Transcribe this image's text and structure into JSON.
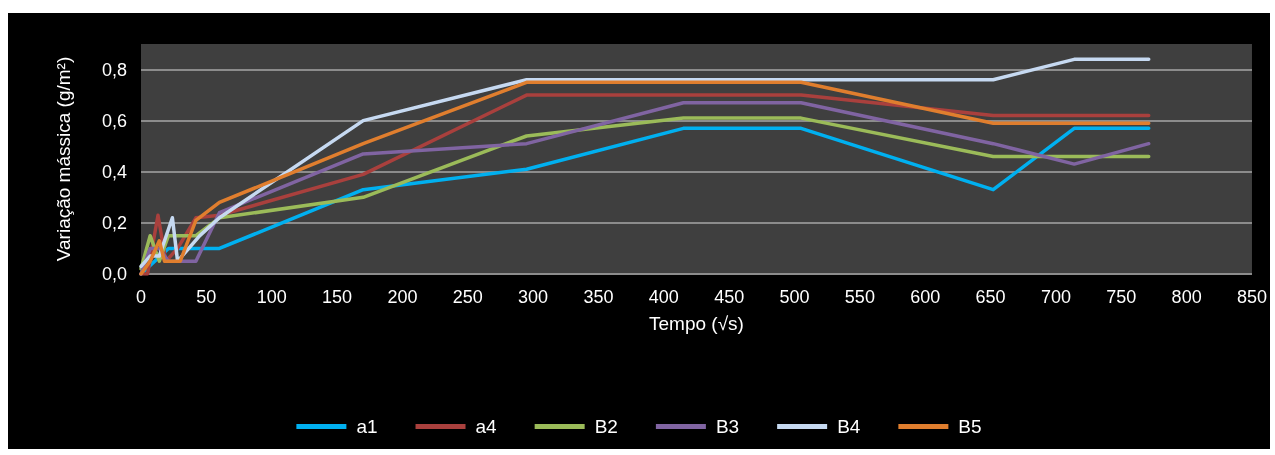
{
  "chart_data": {
    "type": "line",
    "xlabel": "Tempo (√s)",
    "ylabel": "Variação mássica (g/m²)",
    "xlim": [
      0,
      850
    ],
    "xticks": [
      0,
      50,
      100,
      150,
      200,
      250,
      300,
      350,
      400,
      450,
      500,
      550,
      600,
      650,
      700,
      750,
      800,
      850
    ],
    "ylim": [
      0,
      0.9
    ],
    "yticks": [
      {
        "value": 0,
        "label": "0,0"
      },
      {
        "value": 0.2,
        "label": "0,2"
      },
      {
        "value": 0.4,
        "label": "0,4"
      },
      {
        "value": 0.6,
        "label": "0,6"
      },
      {
        "value": 0.8,
        "label": "0,8"
      }
    ],
    "grid": "y",
    "legend": "bottom",
    "marker": "none",
    "line_style": "solid",
    "series": [
      {
        "name": "a1",
        "color": "#00b0f0",
        "x": [
          0,
          21,
          28,
          42,
          60,
          170,
          295,
          415,
          505,
          652,
          714,
          771
        ],
        "values": [
          0,
          0.1,
          0.1,
          0.1,
          0.1,
          0.33,
          0.41,
          0.57,
          0.57,
          0.33,
          0.57,
          0.57
        ]
      },
      {
        "name": "a4",
        "color": "#a9403d",
        "x": [
          0,
          5,
          13,
          19,
          28,
          42,
          60,
          170,
          295,
          415,
          505,
          652,
          714,
          771
        ],
        "values": [
          0,
          0,
          0.23,
          0.05,
          0.1,
          0.22,
          0.23,
          0.39,
          0.7,
          0.7,
          0.7,
          0.62,
          0.62,
          0.62
        ]
      },
      {
        "name": "B2",
        "color": "#9bbb59",
        "x": [
          0,
          7,
          14,
          21,
          28,
          42,
          60,
          170,
          295,
          415,
          505,
          652,
          714,
          771
        ],
        "values": [
          0.02,
          0.15,
          0.05,
          0.15,
          0.15,
          0.15,
          0.22,
          0.3,
          0.54,
          0.61,
          0.61,
          0.46,
          0.46,
          0.46
        ]
      },
      {
        "name": "B3",
        "color": "#8064a2",
        "x": [
          0,
          7,
          14,
          21,
          28,
          42,
          60,
          170,
          295,
          415,
          505,
          652,
          714,
          771
        ],
        "values": [
          0,
          0.1,
          0.1,
          0.05,
          0.05,
          0.05,
          0.24,
          0.47,
          0.51,
          0.67,
          0.67,
          0.51,
          0.43,
          0.51
        ]
      },
      {
        "name": "B4",
        "color": "#c6d9f1",
        "x": [
          0,
          7,
          14,
          24,
          28,
          45,
          60,
          170,
          295,
          415,
          505,
          652,
          714,
          771
        ],
        "values": [
          0.03,
          0.07,
          0.07,
          0.22,
          0.05,
          0.15,
          0.22,
          0.6,
          0.76,
          0.76,
          0.76,
          0.76,
          0.84,
          0.84
        ]
      },
      {
        "name": "B5",
        "color": "#e07e2e",
        "x": [
          0,
          7,
          14,
          18,
          30,
          42,
          60,
          170,
          295,
          415,
          505,
          652,
          714,
          771
        ],
        "values": [
          0,
          0.05,
          0.13,
          0.05,
          0.05,
          0.21,
          0.28,
          0.51,
          0.75,
          0.75,
          0.75,
          0.59,
          0.59,
          0.59
        ]
      }
    ]
  }
}
